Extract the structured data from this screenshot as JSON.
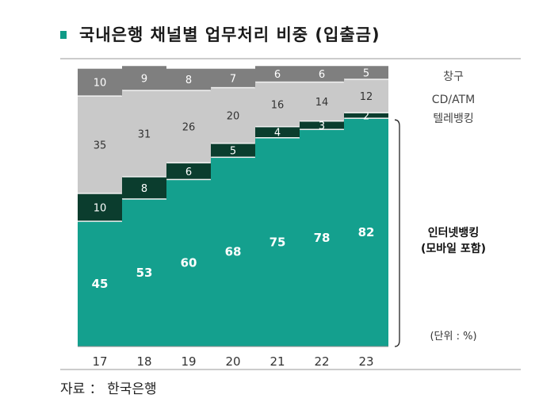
{
  "title": "국내은행 채널별 업무처리 비중 (입출금)",
  "source": "자료 ： 한국은행",
  "unit": "(단위 : %)",
  "colors": {
    "title_bullet": "#0f9b87",
    "internet_banking": "#14a08e",
    "telebanking": "#0b3d2e",
    "cd_atm": "#c9c9c9",
    "counter": "#7f7f7f",
    "plot_bg": "#f2f2f2"
  },
  "chart_data": {
    "type": "bar",
    "stacked": true,
    "normalized": true,
    "categories": [
      "17",
      "18",
      "19",
      "20",
      "21",
      "22",
      "23"
    ],
    "series": [
      {
        "name": "인터넷뱅킹 (모바일 포함)",
        "label_lines": [
          "인터넷뱅킹",
          "(모바일 포함)"
        ],
        "values": [
          45,
          53,
          60,
          68,
          75,
          78,
          82
        ]
      },
      {
        "name": "텔레뱅킹",
        "label_lines": [
          "텔레뱅킹"
        ],
        "values": [
          10,
          8,
          6,
          5,
          4,
          3,
          2
        ]
      },
      {
        "name": "CD/ATM",
        "label_lines": [
          "CD/ATM"
        ],
        "values": [
          35,
          31,
          26,
          20,
          16,
          14,
          12
        ]
      },
      {
        "name": "창구",
        "label_lines": [
          "창구"
        ],
        "values": [
          10,
          9,
          8,
          7,
          6,
          6,
          5
        ]
      }
    ],
    "ylim": [
      0,
      100
    ],
    "xlabel": "",
    "ylabel": ""
  }
}
